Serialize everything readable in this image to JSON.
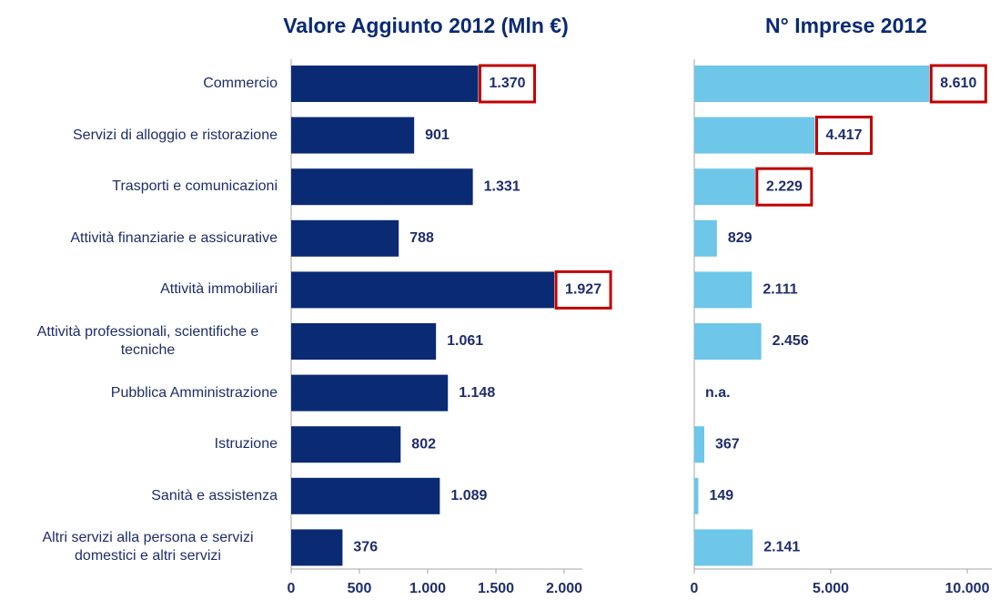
{
  "chart_data": [
    {
      "type": "bar",
      "orientation": "horizontal",
      "title": "Valore Aggiunto 2012 (Mln €)",
      "categories": [
        "Commercio",
        "Servizi di alloggio e ristorazione",
        "Trasporti e comunicazioni",
        "Attività finanziarie e assicurative",
        "Attività immobiliari",
        "Attività professionali, scientifiche e tecniche",
        "Pubblica Amministrazione",
        "Istruzione",
        "Sanità e assistenza",
        "Altri servizi alla persona e servizi domestici e altri servizi"
      ],
      "values": [
        1370,
        901,
        1331,
        788,
        1927,
        1061,
        1148,
        802,
        1089,
        376
      ],
      "value_labels": [
        "1.370",
        "901",
        "1.331",
        "788",
        "1.927",
        "1.061",
        "1.148",
        "802",
        "1.089",
        "376"
      ],
      "color": "#0a2a73",
      "xlim": [
        0,
        2000
      ],
      "xticks": [
        0,
        500,
        {
          "value": 1000,
          "label": "1.000"
        },
        {
          "value": 1500,
          "label": "1.500"
        },
        {
          "value": 2000,
          "label": "2.000"
        }
      ],
      "highlighted": [
        0,
        4
      ],
      "highlight_color": "#c00000"
    },
    {
      "type": "bar",
      "orientation": "horizontal",
      "title": "N° Imprese 2012",
      "values": [
        8610,
        4417,
        2229,
        829,
        2111,
        2456,
        null,
        367,
        149,
        2141
      ],
      "value_labels": [
        "8.610",
        "4.417",
        "2.229",
        "829",
        "2.111",
        "2.456",
        "n.a.",
        "367",
        "149",
        "2.141"
      ],
      "color": "#6ec6e8",
      "xlim": [
        0,
        10000
      ],
      "xticks": [
        0,
        {
          "value": 5000,
          "label": "5.000"
        },
        {
          "value": 10000,
          "label": "10.000"
        }
      ],
      "highlighted": [
        0,
        1,
        2
      ],
      "highlight_color": "#c00000"
    }
  ]
}
